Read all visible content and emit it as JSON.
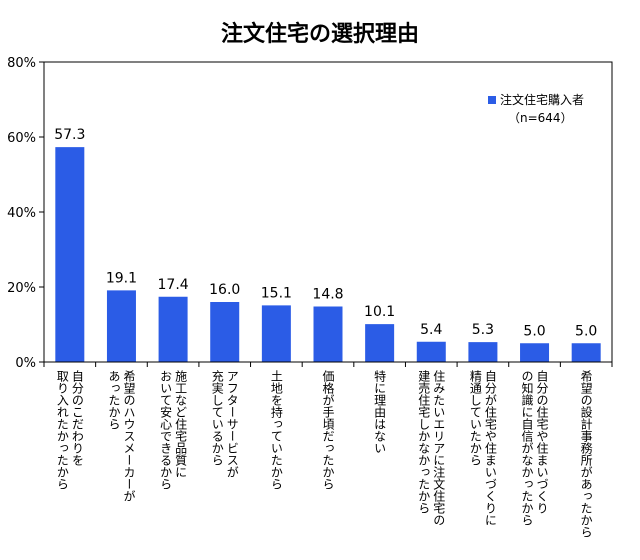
{
  "chart_data": {
    "type": "bar",
    "title": "注文住宅の選択理由",
    "categories": [
      [
        "自分のこだわりを",
        "取り入れたかったから"
      ],
      [
        "希望のハウスメーカーが",
        "あったから"
      ],
      [
        "施工など住宅品質に",
        "おいて安心できるから"
      ],
      [
        "アフターサービスが",
        "充実しているから"
      ],
      [
        "土地を持っていたから"
      ],
      [
        "価格が手頃だったから"
      ],
      [
        "特に理由はない"
      ],
      [
        "住みたいエリアに注文住宅の",
        "建売住宅しかなかったから"
      ],
      [
        "自分が住宅や住まいづくりに",
        "精通していたから"
      ],
      [
        "自分の住宅や住まいづくり",
        "の知識に自信がなかったから"
      ],
      [
        "希望の設計事務所があったから"
      ]
    ],
    "series": [
      {
        "name": "注文住宅購入者",
        "note": "（n=644）",
        "color": "#2b5ce6",
        "values": [
          57.3,
          19.1,
          17.4,
          16.0,
          15.1,
          14.8,
          10.1,
          5.4,
          5.3,
          5.0,
          5.0
        ],
        "value_labels": [
          "57.3",
          "19.1",
          "17.4",
          "16.0",
          "15.1",
          "14.8",
          "10.1",
          "5.4",
          "5.3",
          "5.0",
          "5.0"
        ]
      }
    ],
    "ylim": [
      0,
      80
    ],
    "yticks": [
      0,
      20,
      40,
      60,
      80
    ],
    "ytick_labels": [
      "0%",
      "20%",
      "40%",
      "60%",
      "80%"
    ],
    "xlabel": "",
    "ylabel": "",
    "grid": false,
    "legend_position": "top-right"
  }
}
